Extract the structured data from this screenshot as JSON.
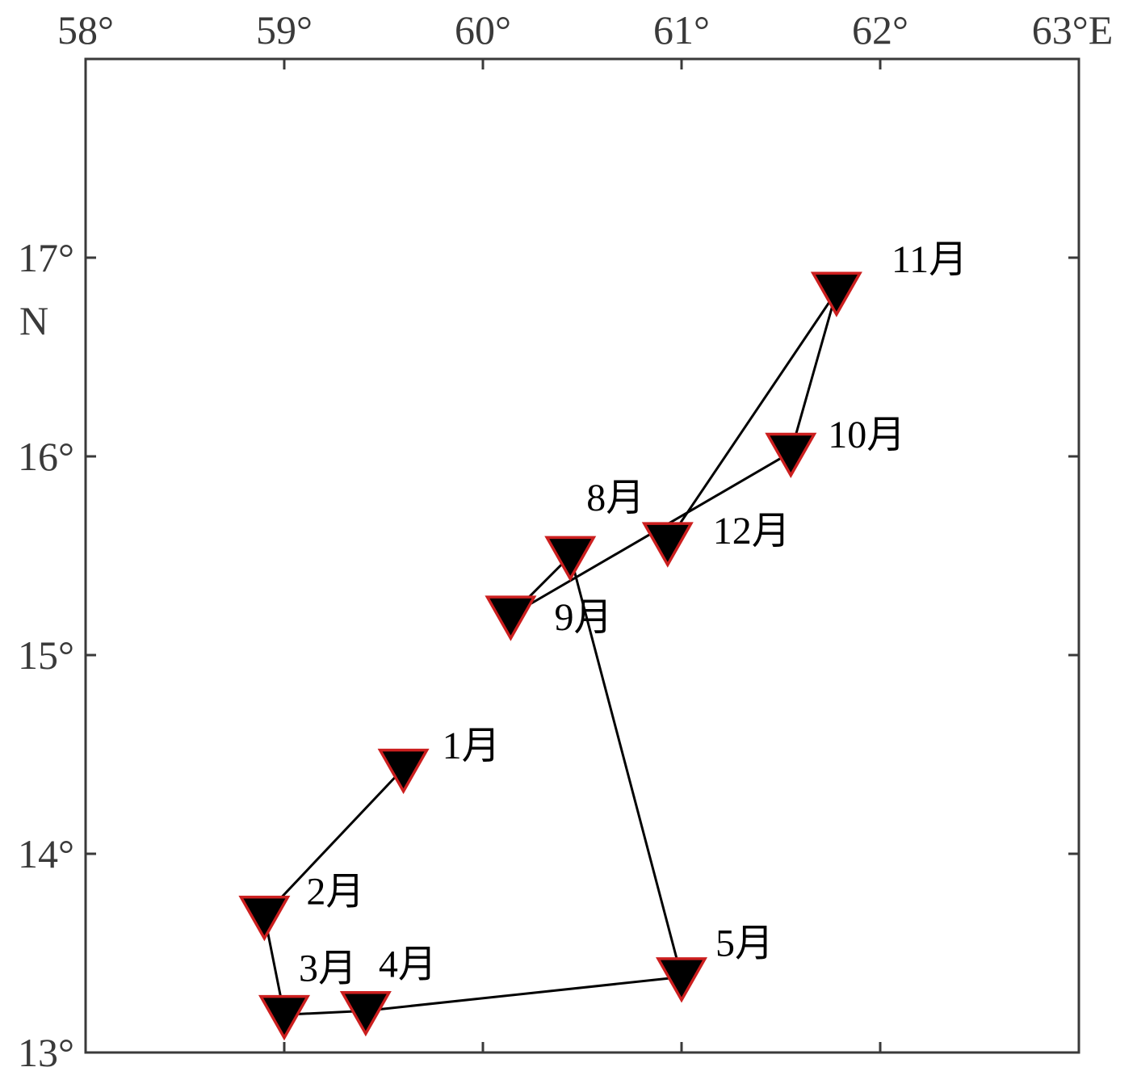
{
  "chart_data": {
    "type": "scatter",
    "title": "",
    "xlim": [
      58,
      63
    ],
    "ylim": [
      13,
      18
    ],
    "x_ticks": [
      {
        "value": 58,
        "label": "58°"
      },
      {
        "value": 59,
        "label": "59°"
      },
      {
        "value": 60,
        "label": "60°"
      },
      {
        "value": 61,
        "label": "61°"
      },
      {
        "value": 62,
        "label": "62°"
      },
      {
        "value": 63,
        "label": "63°E"
      }
    ],
    "y_ticks": [
      {
        "value": 13,
        "label": "13°"
      },
      {
        "value": 14,
        "label": "14°"
      },
      {
        "value": 15,
        "label": "15°"
      },
      {
        "value": 16,
        "label": "16°"
      },
      {
        "value": 17,
        "label": "17°"
      }
    ],
    "y_unit_label": "N",
    "grid": false,
    "connected": true,
    "marker": "triangle-down",
    "colors": {
      "marker_fill": "#000000",
      "marker_edge": "#cc1f1f",
      "line": "#000000",
      "axis": "#3a3a3a"
    },
    "points": [
      {
        "label": "1月",
        "lon": 59.6,
        "lat": 14.43
      },
      {
        "label": "2月",
        "lon": 58.9,
        "lat": 13.69
      },
      {
        "label": "3月",
        "lon": 59.0,
        "lat": 13.19
      },
      {
        "label": "4月",
        "lon": 59.41,
        "lat": 13.21
      },
      {
        "label": "5月",
        "lon": 61.0,
        "lat": 13.38
      },
      {
        "label": "8月",
        "lon": 60.44,
        "lat": 15.5
      },
      {
        "label": "9月",
        "lon": 60.14,
        "lat": 15.2
      },
      {
        "label": "10月",
        "lon": 61.55,
        "lat": 16.02
      },
      {
        "label": "11月",
        "lon": 61.78,
        "lat": 16.83
      },
      {
        "label": "12月",
        "lon": 60.93,
        "lat": 15.57
      }
    ],
    "label_offsets": [
      {
        "dx": 48,
        "dy": -28
      },
      {
        "dx": 52,
        "dy": -30
      },
      {
        "dx": 18,
        "dy": -58
      },
      {
        "dx": 16,
        "dy": -58
      },
      {
        "dx": 42,
        "dy": -42
      },
      {
        "dx": 20,
        "dy": -72
      },
      {
        "dx": 54,
        "dy": 2
      },
      {
        "dx": 46,
        "dy": -22
      },
      {
        "dx": 68,
        "dy": -40
      },
      {
        "dx": 56,
        "dy": -14
      }
    ],
    "path_order": [
      0,
      1,
      2,
      3,
      4,
      5,
      6,
      7,
      8,
      9
    ]
  }
}
